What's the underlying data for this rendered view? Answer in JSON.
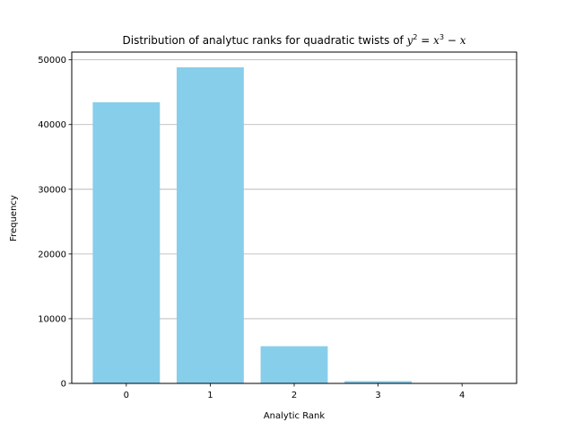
{
  "chart_data": {
    "type": "bar",
    "title": "Distribution of analytuc ranks for quadratic twists of ",
    "title_math": {
      "y": "y",
      "y_exp": "2",
      "eq": " = ",
      "x1": "x",
      "x1_exp": "3",
      "minus": " − ",
      "x2": "x"
    },
    "xlabel": "Analytic Rank",
    "ylabel": "Frequency",
    "categories": [
      "0",
      "1",
      "2",
      "3",
      "4"
    ],
    "values": [
      43450,
      48850,
      5750,
      350,
      10
    ],
    "ylim": [
      0,
      51200
    ],
    "yticks": [
      0,
      10000,
      20000,
      30000,
      40000,
      50000
    ],
    "grid": "y",
    "bar_color": "#87CEEB"
  }
}
